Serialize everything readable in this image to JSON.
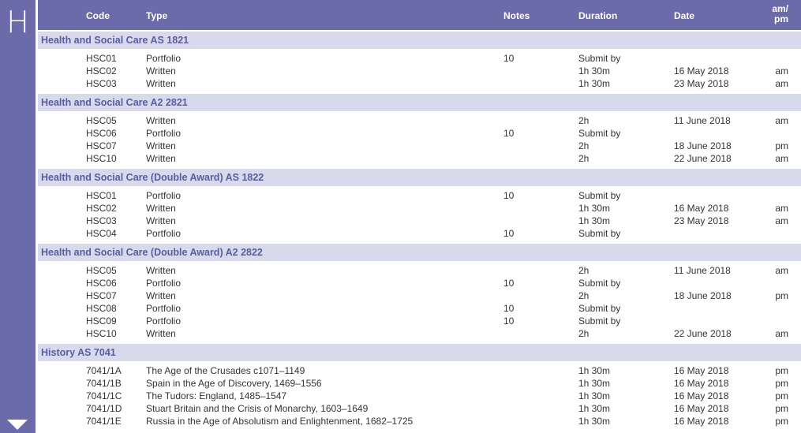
{
  "side": {
    "letter": "H"
  },
  "header": {
    "code": "Code",
    "type": "Type",
    "notes": "Notes",
    "duration": "Duration",
    "date": "Date",
    "ampm_line1": "am/",
    "ampm_line2": "pm"
  },
  "sections": [
    {
      "title": "Health and Social Care AS  1821",
      "rows": [
        {
          "code": "HSC01",
          "type": "Portfolio",
          "notes": "10",
          "duration": "Submit by",
          "date": "",
          "ampm": ""
        },
        {
          "code": "HSC02",
          "type": "Written",
          "notes": "",
          "duration": "1h 30m",
          "date": "16 May 2018",
          "ampm": "am"
        },
        {
          "code": "HSC03",
          "type": "Written",
          "notes": "",
          "duration": "1h 30m",
          "date": "23 May 2018",
          "ampm": "am"
        }
      ]
    },
    {
      "title": "Health and Social Care A2  2821",
      "rows": [
        {
          "code": "HSC05",
          "type": "Written",
          "notes": "",
          "duration": "2h",
          "date": "11 June 2018",
          "ampm": "am"
        },
        {
          "code": "HSC06",
          "type": "Portfolio",
          "notes": "10",
          "duration": "Submit by",
          "date": "",
          "ampm": ""
        },
        {
          "code": "HSC07",
          "type": "Written",
          "notes": "",
          "duration": "2h",
          "date": "18 June 2018",
          "ampm": "pm"
        },
        {
          "code": "HSC10",
          "type": "Written",
          "notes": "",
          "duration": "2h",
          "date": "22 June 2018",
          "ampm": "am"
        }
      ]
    },
    {
      "title": "Health and Social Care (Double Award) AS  1822",
      "rows": [
        {
          "code": "HSC01",
          "type": "Portfolio",
          "notes": "10",
          "duration": "Submit by",
          "date": "",
          "ampm": ""
        },
        {
          "code": "HSC02",
          "type": "Written",
          "notes": "",
          "duration": "1h 30m",
          "date": "16 May 2018",
          "ampm": "am"
        },
        {
          "code": "HSC03",
          "type": "Written",
          "notes": "",
          "duration": "1h 30m",
          "date": "23 May 2018",
          "ampm": "am"
        },
        {
          "code": "HSC04",
          "type": "Portfolio",
          "notes": "10",
          "duration": "Submit by",
          "date": "",
          "ampm": ""
        }
      ]
    },
    {
      "title": "Health and Social Care (Double Award) A2  2822",
      "rows": [
        {
          "code": "HSC05",
          "type": "Written",
          "notes": "",
          "duration": "2h",
          "date": "11 June 2018",
          "ampm": "am"
        },
        {
          "code": "HSC06",
          "type": "Portfolio",
          "notes": "10",
          "duration": "Submit by",
          "date": "",
          "ampm": ""
        },
        {
          "code": "HSC07",
          "type": "Written",
          "notes": "",
          "duration": "2h",
          "date": "18 June 2018",
          "ampm": "pm"
        },
        {
          "code": "HSC08",
          "type": "Portfolio",
          "notes": "10",
          "duration": "Submit by",
          "date": "",
          "ampm": ""
        },
        {
          "code": "HSC09",
          "type": "Portfolio",
          "notes": "10",
          "duration": "Submit by",
          "date": "",
          "ampm": ""
        },
        {
          "code": "HSC10",
          "type": "Written",
          "notes": "",
          "duration": "2h",
          "date": "22 June 2018",
          "ampm": "am"
        }
      ]
    },
    {
      "title": "History AS  7041",
      "rows": [
        {
          "code": "7041/1A",
          "type": "The Age of the Crusades c1071–1149",
          "notes": "",
          "duration": "1h 30m",
          "date": "16 May 2018",
          "ampm": "pm"
        },
        {
          "code": "7041/1B",
          "type": "Spain in the Age of Discovery, 1469–1556",
          "notes": "",
          "duration": "1h 30m",
          "date": "16 May 2018",
          "ampm": "pm"
        },
        {
          "code": "7041/1C",
          "type": "The Tudors: England, 1485–1547",
          "notes": "",
          "duration": "1h 30m",
          "date": "16 May 2018",
          "ampm": "pm"
        },
        {
          "code": "7041/1D",
          "type": "Stuart Britain and the Crisis of Monarchy, 1603–1649",
          "notes": "",
          "duration": "1h 30m",
          "date": "16 May 2018",
          "ampm": "pm"
        },
        {
          "code": "7041/1E",
          "type": "Russia in the Age of Absolutism and Enlightenment, 1682–1725",
          "notes": "",
          "duration": "1h 30m",
          "date": "16 May 2018",
          "ampm": "pm"
        }
      ]
    }
  ]
}
